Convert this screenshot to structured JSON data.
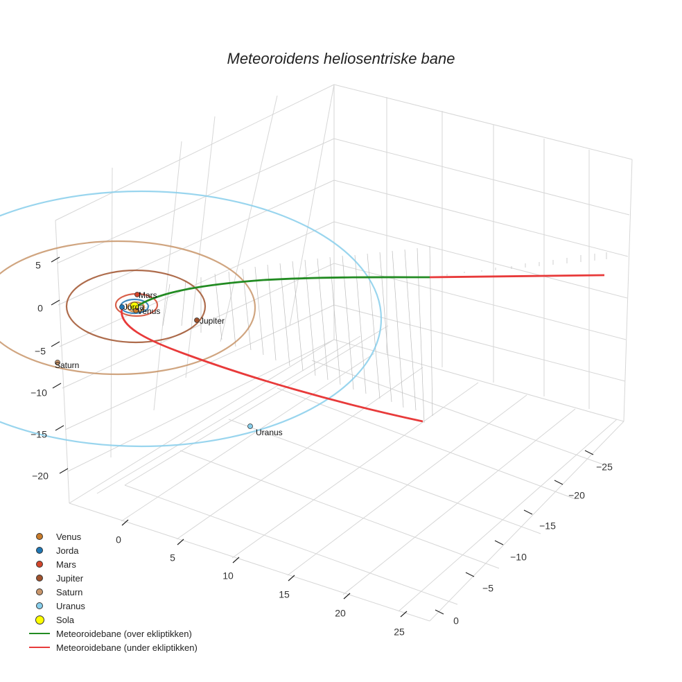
{
  "title": "Meteoroidens heliosentriske bane",
  "legend": [
    {
      "label": "Venus",
      "color": "#c87b2a",
      "kind": "dot"
    },
    {
      "label": "Jorda",
      "color": "#1f77b4",
      "kind": "dot"
    },
    {
      "label": "Mars",
      "color": "#d2452b",
      "kind": "dot"
    },
    {
      "label": "Jupiter",
      "color": "#a0522d",
      "kind": "dot"
    },
    {
      "label": "Saturn",
      "color": "#c8956a",
      "kind": "dot"
    },
    {
      "label": "Uranus",
      "color": "#87ceeb",
      "kind": "dot"
    },
    {
      "label": "Sola",
      "color": "#ffff00",
      "kind": "sun"
    },
    {
      "label": "Meteoroidebane (over ekliptikken)",
      "color": "#228b22",
      "kind": "line"
    },
    {
      "label": "Meteoroidebane (under ekliptikken)",
      "color": "#e83a3a",
      "kind": "line"
    }
  ],
  "chart_data": {
    "type": "scatter3d",
    "title": "Meteoroidens heliosentriske bane",
    "xlabel": "",
    "ylabel": "",
    "zlabel": "",
    "axes": {
      "x_ticks": [
        0,
        5,
        10,
        15,
        20,
        25
      ],
      "y_ticks": [
        0,
        -5,
        -10,
        -15,
        -20,
        -25
      ],
      "z_ticks": [
        5,
        0,
        -5,
        -10,
        -15,
        -20
      ],
      "x_tick_labels": [
        "0",
        "5",
        "10",
        "15",
        "20",
        "25"
      ],
      "y_tick_labels": [
        "0",
        "−5",
        "−10",
        "−15",
        "−20",
        "−25"
      ],
      "z_tick_labels": [
        "5",
        "0",
        "−5",
        "−10",
        "−15",
        "−20"
      ],
      "grid": true
    },
    "planets": [
      {
        "name": "Venus",
        "label": "Venus",
        "orbit_radius_au": 0.72,
        "x": 0.3,
        "y": -0.65,
        "z": 0
      },
      {
        "name": "Jorda",
        "label": "Jorda",
        "orbit_radius_au": 1.0,
        "x": -0.95,
        "y": 0.3,
        "z": 0
      },
      {
        "name": "Mars",
        "label": "Mars",
        "orbit_radius_au": 1.52,
        "x": 0.6,
        "y": 1.4,
        "z": 0
      },
      {
        "name": "Jupiter",
        "label": "Jupiter",
        "orbit_radius_au": 5.2,
        "x": 4.5,
        "y": -2.6,
        "z": 0
      },
      {
        "name": "Saturn",
        "label": "Saturn",
        "orbit_radius_au": 9.5,
        "x": -8.5,
        "y": -4.2,
        "z": 0
      },
      {
        "name": "Uranus",
        "label": "Uranus",
        "orbit_radius_au": 19.2,
        "x": 12,
        "y": -15,
        "z": 0
      }
    ],
    "sun": {
      "name": "Sola",
      "x": 0,
      "y": 0,
      "z": 0
    },
    "series": [
      {
        "name": "Meteoroidebane (over ekliptikken)",
        "color": "#228b22",
        "points": [
          [
            0.3,
            -0.6,
            0.2
          ],
          [
            1.5,
            0.2,
            0.6
          ],
          [
            4,
            1,
            1.2
          ],
          [
            8,
            1.8,
            2.0
          ],
          [
            12,
            2.4,
            2.8
          ],
          [
            16,
            3.0,
            3.4
          ],
          [
            20,
            3.5,
            4.0
          ],
          [
            24,
            4.0,
            4.6
          ],
          [
            25,
            7.5,
            5.0
          ],
          [
            25,
            12,
            5.2
          ]
        ]
      },
      {
        "name": "Meteoroidebane (under ekliptikken)",
        "color": "#e83a3a",
        "points": [
          [
            -0.4,
            -0.6,
            -0.1
          ],
          [
            1,
            -3,
            -1.5
          ],
          [
            4,
            -6,
            -3
          ],
          [
            8,
            -9,
            -4.5
          ],
          [
            12,
            -11.5,
            -6
          ],
          [
            16,
            -13.5,
            -7.5
          ],
          [
            19,
            -15,
            -8.5
          ],
          [
            25,
            12,
            5.2
          ],
          [
            25,
            20,
            5.5
          ],
          [
            25,
            26,
            5.6
          ]
        ]
      }
    ]
  }
}
